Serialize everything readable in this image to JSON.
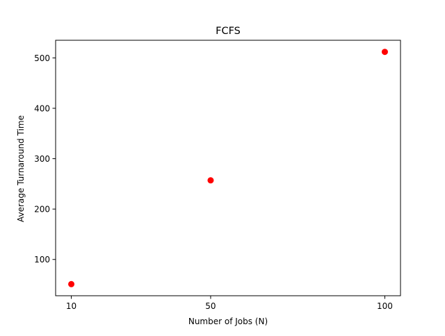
{
  "chart_data": {
    "type": "scatter",
    "title": "FCFS",
    "xlabel": "Number of Jobs (N)",
    "ylabel": "Average Turnaround Time",
    "x": [
      10,
      50,
      100
    ],
    "y": [
      51,
      257,
      512
    ],
    "xticks": [
      10,
      50,
      100
    ],
    "yticks": [
      100,
      200,
      300,
      400,
      500
    ],
    "xlim": [
      5.5,
      104.5
    ],
    "ylim": [
      28,
      535
    ],
    "marker_color": "#ff0000",
    "grid": false,
    "legend": "none"
  }
}
